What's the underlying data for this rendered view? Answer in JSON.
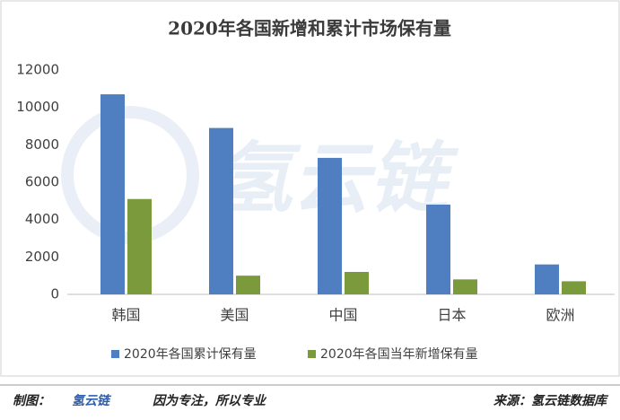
{
  "chart_data": {
    "type": "bar",
    "title": "2020年各国新增和累计市场保有量",
    "categories": [
      "韩国",
      "美国",
      "中国",
      "日本",
      "欧洲"
    ],
    "series": [
      {
        "name": "2020年各国累计保有量",
        "color": "#4f7fc0",
        "values": [
          10700,
          8900,
          7300,
          4800,
          1600
        ]
      },
      {
        "name": "2020年各国当年新增保有量",
        "color": "#7a9a3c",
        "values": [
          5100,
          1000,
          1200,
          800,
          700
        ]
      }
    ],
    "ylim": [
      0,
      12000
    ],
    "yticks": [
      0,
      2000,
      4000,
      6000,
      8000,
      10000,
      12000
    ],
    "grid": false,
    "legend": "bottom"
  },
  "watermark": "氢云链",
  "footer": {
    "maker_label": "制图：",
    "maker_logo": "氢云链",
    "slogan": "因为专注，所以专业",
    "source": "来源：氢云链数据库"
  }
}
